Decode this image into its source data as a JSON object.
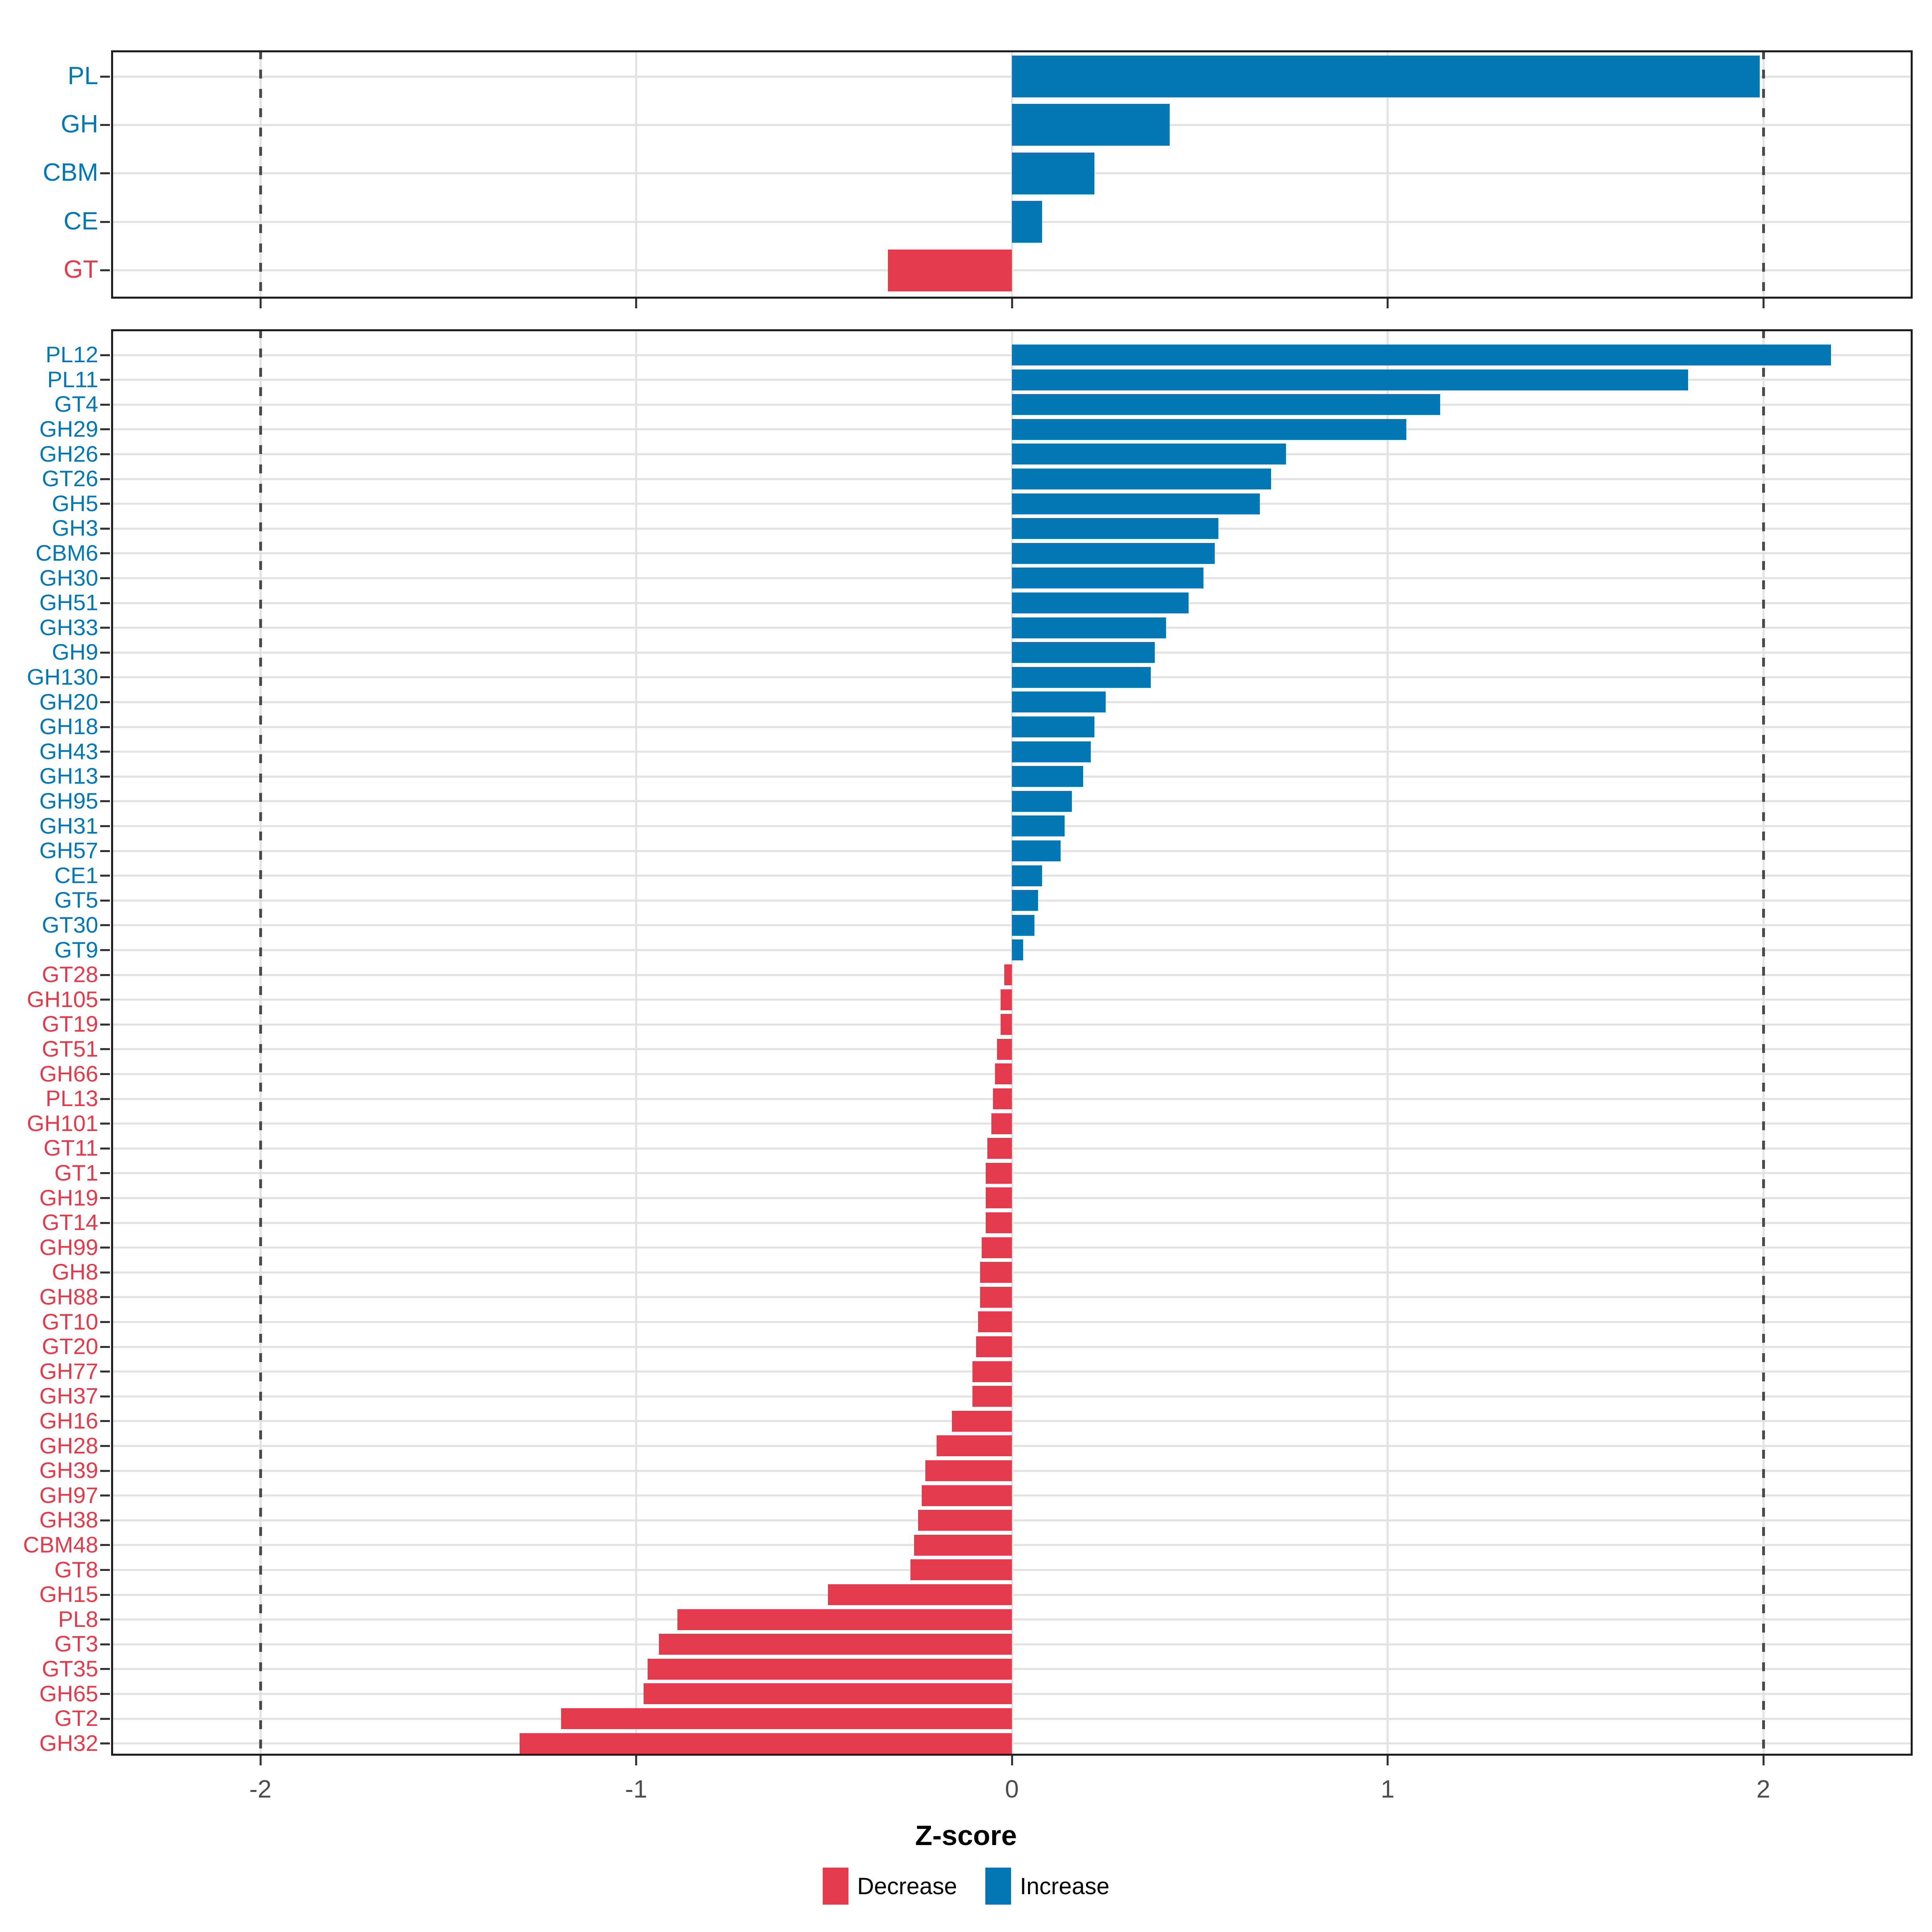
{
  "figure": {
    "xlabel": "Z-score",
    "x_ticks": [
      -2,
      -1,
      0,
      1,
      2
    ],
    "x_tick_labels": [
      "-2",
      "-1",
      "0",
      "1",
      "2"
    ],
    "xlim": [
      -2.4,
      2.4
    ],
    "dashed_lines": [
      -2,
      2
    ],
    "grid": true,
    "legend_position": "bottom-center",
    "colors": {
      "increase": "#0277b5",
      "decrease": "#e43b4c",
      "grid": "#e2e2e2",
      "dashed_line": "#4a4a4a",
      "panel_border": "#1f1f1f",
      "tick_text": "#4d4d4d"
    },
    "legend": [
      {
        "label": "Decrease",
        "color": "#e43b4c"
      },
      {
        "label": "Increase",
        "color": "#0277b5"
      }
    ]
  },
  "chart_data": [
    {
      "type": "bar",
      "orientation": "horizontal",
      "panel": "top",
      "xlabel": "Z-score",
      "xlim": [
        -2.4,
        2.4
      ],
      "categories": [
        "PL",
        "GH",
        "CBM",
        "CE",
        "GT"
      ],
      "values": [
        1.99,
        0.42,
        0.22,
        0.08,
        -0.33
      ]
    },
    {
      "type": "bar",
      "orientation": "horizontal",
      "panel": "bottom",
      "xlabel": "Z-score",
      "xlim": [
        -2.4,
        2.4
      ],
      "categories": [
        "PL12",
        "PL11",
        "GT4",
        "GH29",
        "GH26",
        "GT26",
        "GH5",
        "GH3",
        "CBM6",
        "GH30",
        "GH51",
        "GH33",
        "GH9",
        "GH130",
        "GH20",
        "GH18",
        "GH43",
        "GH13",
        "GH95",
        "GH31",
        "GH57",
        "CE1",
        "GT5",
        "GT30",
        "GT9",
        "GT28",
        "GH105",
        "GT19",
        "GT51",
        "GH66",
        "PL13",
        "GH101",
        "GT11",
        "GT1",
        "GH19",
        "GT14",
        "GH99",
        "GH8",
        "GH88",
        "GT10",
        "GT20",
        "GH77",
        "GH37",
        "GH16",
        "GH28",
        "GH39",
        "GH97",
        "GH38",
        "CBM48",
        "GT8",
        "GH15",
        "PL8",
        "GT3",
        "GT35",
        "GH65",
        "GT2",
        "GH32"
      ],
      "values": [
        2.18,
        1.8,
        1.14,
        1.05,
        0.73,
        0.69,
        0.66,
        0.55,
        0.54,
        0.51,
        0.47,
        0.41,
        0.38,
        0.37,
        0.25,
        0.22,
        0.21,
        0.19,
        0.16,
        0.14,
        0.13,
        0.08,
        0.07,
        0.06,
        0.03,
        -0.02,
        -0.03,
        -0.03,
        -0.04,
        -0.045,
        -0.05,
        -0.055,
        -0.065,
        -0.07,
        -0.07,
        -0.07,
        -0.08,
        -0.085,
        -0.085,
        -0.09,
        -0.095,
        -0.105,
        -0.105,
        -0.16,
        -0.2,
        -0.23,
        -0.24,
        -0.25,
        -0.26,
        -0.27,
        -0.49,
        -0.89,
        -0.94,
        -0.97,
        -0.98,
        -1.2,
        -1.31
      ]
    }
  ]
}
